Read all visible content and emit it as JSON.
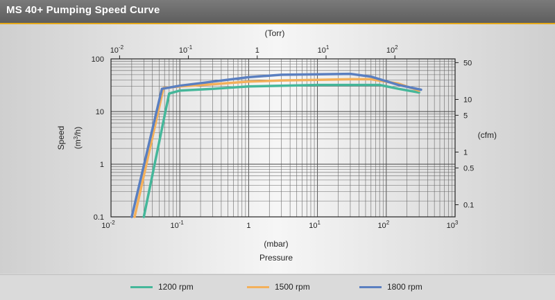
{
  "title": "MS 40+ Pumping Speed Curve",
  "colors": {
    "c1200": "#45b79a",
    "c1500": "#f4b05a",
    "c1800": "#5a7fc0",
    "accent": "#e6a919"
  },
  "legend": [
    {
      "label": "1200 rpm",
      "color": "#45b79a"
    },
    {
      "label": "1500 rpm",
      "color": "#f4b05a"
    },
    {
      "label": "1800 rpm",
      "color": "#5a7fc0"
    }
  ],
  "chart_data": {
    "type": "line",
    "xscale": "log",
    "yscale": "log",
    "xlim": [
      0.01,
      1000
    ],
    "ylim": [
      0.1,
      100
    ],
    "xlabel_unit": "(mbar)",
    "xlabel": "Pressure",
    "ylabel": "Speed",
    "ylabel_unit_pre": "(m",
    "ylabel_unit_sup": "3",
    "ylabel_unit_post": "/h)",
    "x_ticks": [
      {
        "base": "10",
        "exp": "-2"
      },
      {
        "base": "10",
        "exp": "-1"
      },
      {
        "base": "1",
        "exp": ""
      },
      {
        "base": "10",
        "exp": "1"
      },
      {
        "base": "10",
        "exp": "2"
      },
      {
        "base": "10",
        "exp": "3"
      }
    ],
    "y_ticks": [
      "0.1",
      "1",
      "10",
      "100"
    ],
    "top_axis": {
      "label": "(Torr)",
      "ticks": [
        {
          "base": "10",
          "exp": "-2",
          "value": 0.01
        },
        {
          "base": "10",
          "exp": "-1",
          "value": 0.1
        },
        {
          "base": "1",
          "exp": "",
          "value": 1
        },
        {
          "base": "10",
          "exp": "1",
          "value": 10
        },
        {
          "base": "10",
          "exp": "2",
          "value": 100
        }
      ]
    },
    "right_axis": {
      "label": "(cfm)",
      "ticks": [
        {
          "label": "50",
          "value": 50
        },
        {
          "label": "10",
          "value": 10
        },
        {
          "label": "5",
          "value": 5
        },
        {
          "label": "1",
          "value": 1
        },
        {
          "label": "0.5",
          "value": 0.5
        },
        {
          "label": "0.1",
          "value": 0.1
        }
      ]
    },
    "series": [
      {
        "name": "1200 rpm",
        "color": "#45b79a",
        "points": [
          [
            0.03,
            0.1
          ],
          [
            0.07,
            22
          ],
          [
            0.1,
            25
          ],
          [
            0.3,
            27
          ],
          [
            1,
            30
          ],
          [
            3,
            31
          ],
          [
            10,
            32
          ],
          [
            30,
            32
          ],
          [
            80,
            32
          ],
          [
            150,
            27
          ],
          [
            300,
            23
          ]
        ]
      },
      {
        "name": "1500 rpm",
        "color": "#f4b05a",
        "points": [
          [
            0.022,
            0.1
          ],
          [
            0.058,
            28
          ],
          [
            0.1,
            30
          ],
          [
            0.3,
            33
          ],
          [
            1,
            37
          ],
          [
            3,
            39
          ],
          [
            10,
            40
          ],
          [
            30,
            41
          ],
          [
            60,
            41
          ],
          [
            150,
            34
          ],
          [
            300,
            25
          ]
        ]
      },
      {
        "name": "1800 rpm",
        "color": "#5a7fc0",
        "points": [
          [
            0.02,
            0.1
          ],
          [
            0.055,
            27
          ],
          [
            0.1,
            31
          ],
          [
            0.3,
            37
          ],
          [
            1,
            45
          ],
          [
            3,
            50
          ],
          [
            10,
            51
          ],
          [
            30,
            52
          ],
          [
            60,
            46
          ],
          [
            150,
            32
          ],
          [
            320,
            26
          ]
        ]
      }
    ]
  }
}
